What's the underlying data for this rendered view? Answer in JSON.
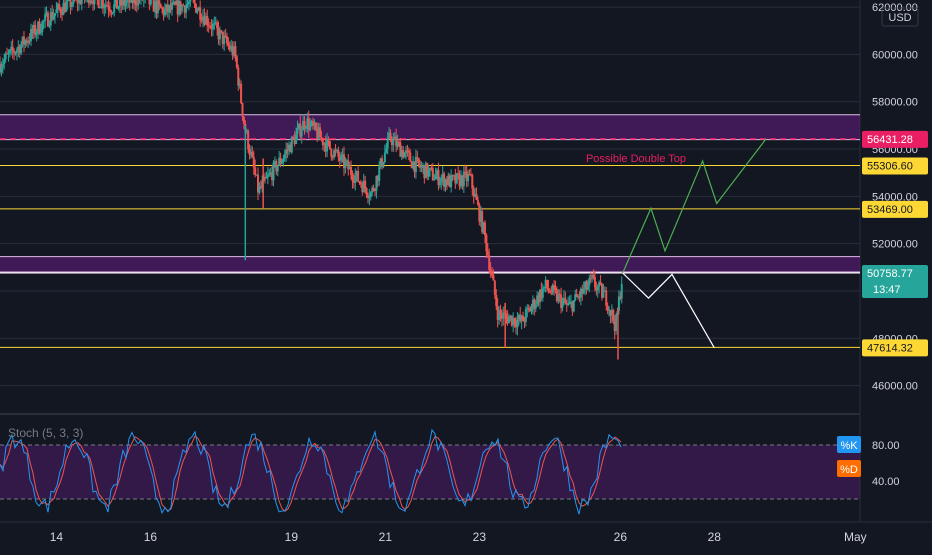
{
  "currency": "USD",
  "annotation": "Possible Double Top",
  "indicator": {
    "title": "Stoch (5, 3, 3)",
    "k_label": "%K",
    "d_label": "%D",
    "upper_band": 80,
    "lower_band": 20,
    "ticks": [
      "80.00",
      "40.00"
    ]
  },
  "colors": {
    "background": "#131722",
    "up_candle": "#26a69a",
    "down_candle": "#ef5350",
    "zone_fill": "#7b1fa2",
    "level_line": "#fdd835",
    "double_top_line": "#e91e63",
    "bull_path": "#4caf50",
    "bear_path": "#ffffff",
    "k_line": "#2196f3",
    "d_line": "#ef5350"
  },
  "chart_data": {
    "type": "candlestick",
    "y_range": [
      44800,
      62300
    ],
    "price_ticks": [
      "62000.00",
      "60000.00",
      "58000.00",
      "56000.00",
      "54000.00",
      "52000.00",
      "48000.00",
      "46000.00"
    ],
    "x_range": [
      12.8,
      31.1
    ],
    "date_ticks": [
      {
        "label": "14",
        "x": 14
      },
      {
        "label": "16",
        "x": 16
      },
      {
        "label": "19",
        "x": 19
      },
      {
        "label": "21",
        "x": 21
      },
      {
        "label": "23",
        "x": 23
      },
      {
        "label": "26",
        "x": 26
      },
      {
        "label": "28",
        "x": 28
      },
      {
        "label": "May",
        "x": 31
      }
    ],
    "price_labels": [
      {
        "text": "56431.28",
        "value": 56431.28,
        "kind": "double-top"
      },
      {
        "text": "55306.60",
        "value": 55306.6,
        "kind": "level"
      },
      {
        "text": "53469.00",
        "value": 53469.0,
        "kind": "level"
      },
      {
        "text": "50758.77",
        "value": 50758.77,
        "kind": "current",
        "countdown": "13:47"
      },
      {
        "text": "47614.32",
        "value": 47614.32,
        "kind": "level"
      }
    ],
    "zones": [
      {
        "from": 56400,
        "to": 57450
      },
      {
        "from": 50800,
        "to": 51450
      }
    ],
    "close_waypoints": [
      [
        12.8,
        59600
      ],
      [
        13.3,
        60500
      ],
      [
        13.8,
        61500
      ],
      [
        14.2,
        62100
      ],
      [
        14.7,
        62500
      ],
      [
        15.2,
        62000
      ],
      [
        15.8,
        62400
      ],
      [
        16.3,
        61800
      ],
      [
        16.9,
        62200
      ],
      [
        17.4,
        61000
      ],
      [
        17.8,
        60000
      ],
      [
        18.0,
        57000
      ],
      [
        18.3,
        54200
      ],
      [
        18.8,
        55600
      ],
      [
        19.3,
        57200
      ],
      [
        19.7,
        56300
      ],
      [
        20.2,
        55200
      ],
      [
        20.7,
        54100
      ],
      [
        21.1,
        56500
      ],
      [
        21.6,
        55400
      ],
      [
        22.0,
        54900
      ],
      [
        22.4,
        54600
      ],
      [
        22.8,
        54800
      ],
      [
        23.1,
        52500
      ],
      [
        23.4,
        49000
      ],
      [
        23.9,
        48700
      ],
      [
        24.4,
        50200
      ],
      [
        24.9,
        49300
      ],
      [
        25.4,
        50400
      ],
      [
        25.7,
        49700
      ],
      [
        25.9,
        48500
      ],
      [
        26.05,
        50760
      ]
    ],
    "bull_path": [
      [
        26.05,
        50760
      ],
      [
        26.65,
        53500
      ],
      [
        26.95,
        51700
      ],
      [
        27.75,
        55500
      ],
      [
        28.05,
        53700
      ],
      [
        29.1,
        56430
      ]
    ],
    "bear_path": [
      [
        26.05,
        50760
      ],
      [
        26.6,
        49700
      ],
      [
        27.1,
        50700
      ],
      [
        28.0,
        47600
      ]
    ],
    "stoch_bands": [
      20,
      80
    ]
  }
}
